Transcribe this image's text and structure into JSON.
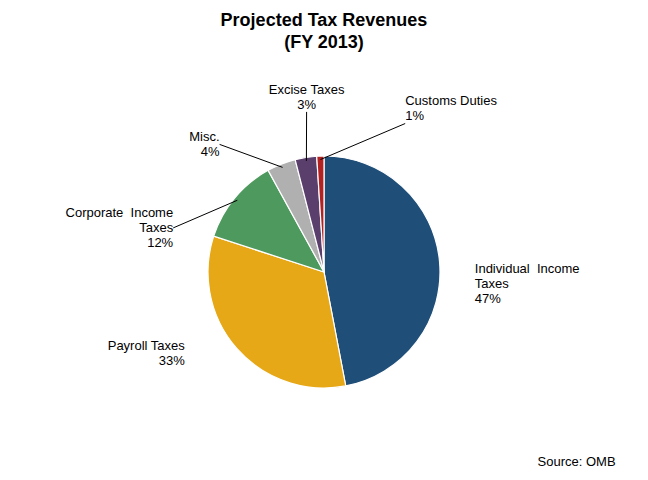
{
  "chart_data": {
    "type": "pie",
    "title": "Projected Tax Revenues\n(FY 2013)",
    "categories": [
      "Individual  Income\nTaxes",
      "Payroll Taxes",
      "Corporate  Income\nTaxes",
      "Misc.",
      "Excise Taxes",
      "Customs Duties"
    ],
    "values": [
      47,
      33,
      12,
      4,
      3,
      1
    ],
    "value_labels": [
      "47%",
      "33%",
      "12%",
      "4%",
      "3%",
      "1%"
    ],
    "colors": [
      "#1f4e79",
      "#e6a817",
      "#4e9a5e",
      "#b0b0b0",
      "#5a3e6b",
      "#b22222"
    ],
    "data_labels": true,
    "annotations": [
      "Source: OMB"
    ]
  }
}
